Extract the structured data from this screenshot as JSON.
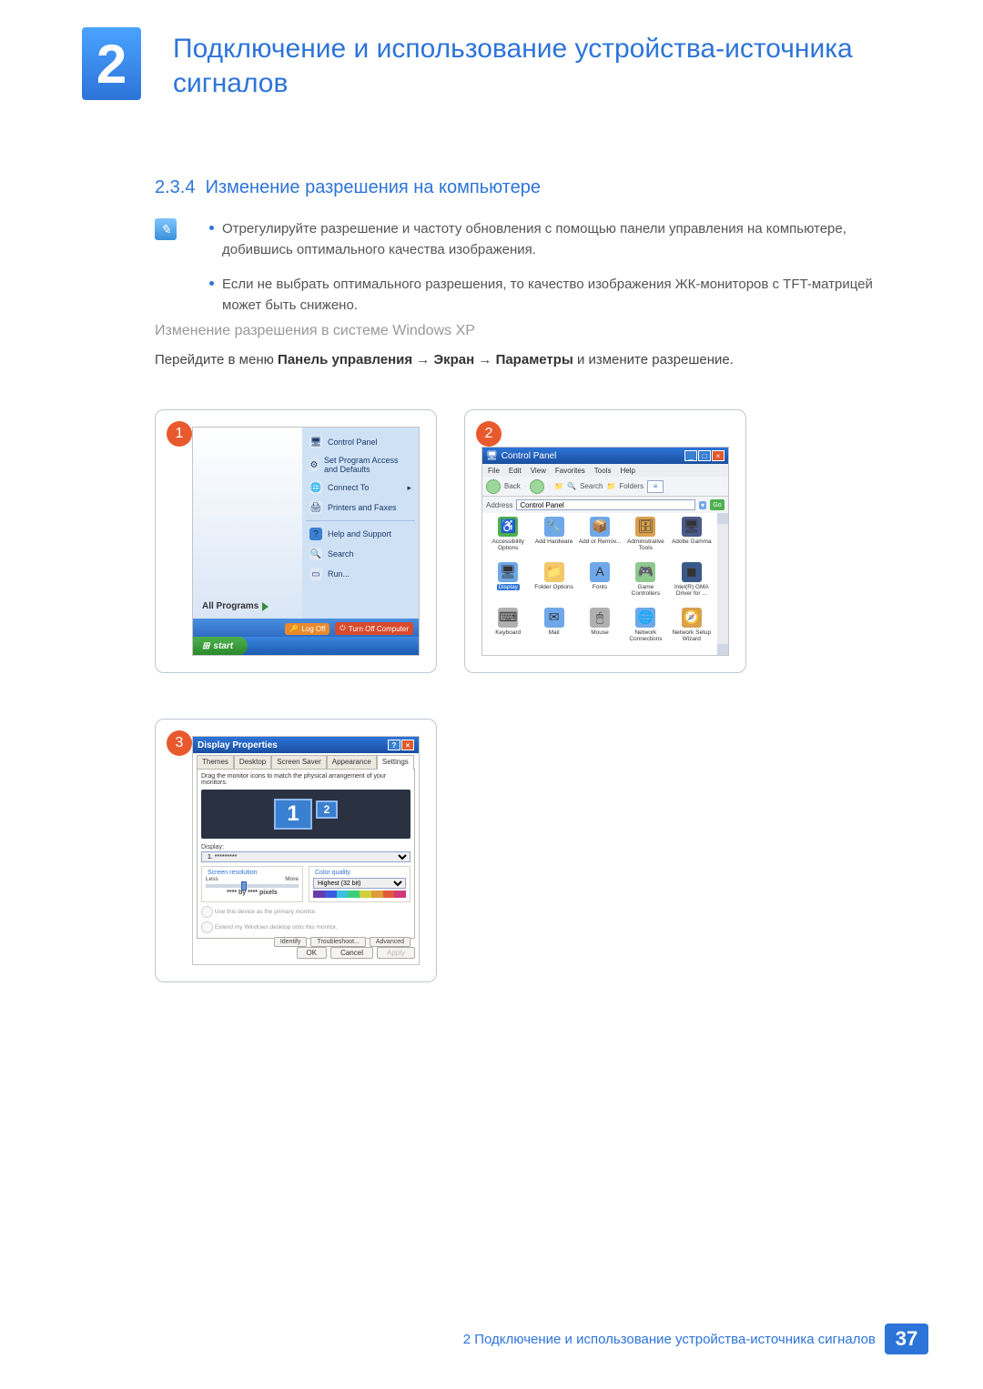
{
  "chapter_number": "2",
  "chapter_title": "Подключение и использование устройства-источника сигналов",
  "section_number": "2.3.4",
  "section_title": "Изменение разрешения на компьютере",
  "bullets": [
    "Отрегулируйте разрешение и частоту обновления с помощью панели управления на компьютере, добившись оптимального качества изображения.",
    "Если не выбрать оптимального разрешения, то качество изображения ЖК-мониторов с TFT-матрицей может быть снижено."
  ],
  "sub_heading": "Изменение разрешения в системе Windows XP",
  "instruction": {
    "prefix": "Перейдите в меню ",
    "path": [
      "Панель управления",
      "Экран",
      "Параметры"
    ],
    "arrow": "→",
    "suffix": " и измените разрешение."
  },
  "step1": {
    "num": "1",
    "all_programs": "All Programs",
    "menu_items": [
      {
        "label": "Control Panel",
        "icon": "🖥",
        "bg": "#e0e8f4"
      },
      {
        "label": "Set Program Access and Defaults",
        "icon": "⚙",
        "bg": "#e0e8f4"
      },
      {
        "label": "Connect To",
        "icon": "🌐",
        "bg": "#e0e8f4",
        "arrow": true
      },
      {
        "label": "Printers and Faxes",
        "icon": "🖨",
        "bg": "#e0e8f4"
      }
    ],
    "menu_items2": [
      {
        "label": "Help and Support",
        "icon": "?",
        "bg": "#3a7fd0"
      },
      {
        "label": "Search",
        "icon": "🔍",
        "bg": "#e0e8f4"
      },
      {
        "label": "Run...",
        "icon": "▭",
        "bg": "#e0e8f4"
      }
    ],
    "logoff": "Log Off",
    "turnoff": "Turn Off Computer",
    "start": "start"
  },
  "step2": {
    "num": "2",
    "title": "Control Panel",
    "menu": [
      "File",
      "Edit",
      "View",
      "Favorites",
      "Tools",
      "Help"
    ],
    "tb_back": "Back",
    "tb_search": "Search",
    "tb_folders": "Folders",
    "address_label": "Address",
    "address_value": "Control Panel",
    "go": "Go",
    "icons": [
      {
        "label": "Accessibility Options",
        "icon": "♿",
        "bg": "#4db04d"
      },
      {
        "label": "Add Hardware",
        "icon": "🔧",
        "bg": "#6fa8e8"
      },
      {
        "label": "Add or Remov...",
        "icon": "📦",
        "bg": "#6fa8e8"
      },
      {
        "label": "Administrative Tools",
        "icon": "🗄",
        "bg": "#d9a04d"
      },
      {
        "label": "Adobe Gamma",
        "icon": "🖥",
        "bg": "#4a5a8a"
      },
      {
        "label": "Display",
        "icon": "🖥",
        "bg": "#6fa8e8",
        "selected": true
      },
      {
        "label": "Folder Options",
        "icon": "📁",
        "bg": "#f0c96a"
      },
      {
        "label": "Fonts",
        "icon": "A",
        "bg": "#6fa8e8"
      },
      {
        "label": "Game Controllers",
        "icon": "🎮",
        "bg": "#8fc98f"
      },
      {
        "label": "Intel(R) GMA Driver for ...",
        "icon": "◼",
        "bg": "#3a5a8a"
      },
      {
        "label": "Keyboard",
        "icon": "⌨",
        "bg": "#b0b0b0"
      },
      {
        "label": "Mail",
        "icon": "✉",
        "bg": "#6fa8e8"
      },
      {
        "label": "Mouse",
        "icon": "🖱",
        "bg": "#b0b0b0"
      },
      {
        "label": "Network Connections",
        "icon": "🌐",
        "bg": "#6fa8e8"
      },
      {
        "label": "Network Setup Wizard",
        "icon": "🧭",
        "bg": "#d9a04d"
      }
    ]
  },
  "step3": {
    "num": "3",
    "title": "Display Properties",
    "tabs": [
      "Themes",
      "Desktop",
      "Screen Saver",
      "Appearance",
      "Settings"
    ],
    "active_tab": 4,
    "hint": "Drag the monitor icons to match the physical arrangement of your monitors.",
    "mon1": "1",
    "mon2": "2",
    "display_label": "Display:",
    "display_value": "1. *********",
    "sr_legend": "Screen resolution",
    "less": "Less",
    "more": "More",
    "sr_value": "**** by **** pixels",
    "cq_legend": "Color quality",
    "cq_value": "Highest (32 bit)",
    "cq_colors": [
      "#6a3aaa",
      "#3a5adf",
      "#3ac0e0",
      "#3ad07a",
      "#d0d03a",
      "#e09a3a",
      "#e05a3a",
      "#d03a7a"
    ],
    "chk1": "Use this device as the primary monitor.",
    "chk2": "Extend my Windows desktop onto this monitor.",
    "btn_id": "Identify",
    "btn_tb": "Troubleshoot...",
    "btn_adv": "Advanced",
    "btn_ok": "OK",
    "btn_cancel": "Cancel",
    "btn_apply": "Apply"
  },
  "footer_text": "2 Подключение и использование устройства-источника сигналов",
  "page_num": "37",
  "colors": {
    "primary": "#2d74d8",
    "accent": "#e85a2d"
  }
}
